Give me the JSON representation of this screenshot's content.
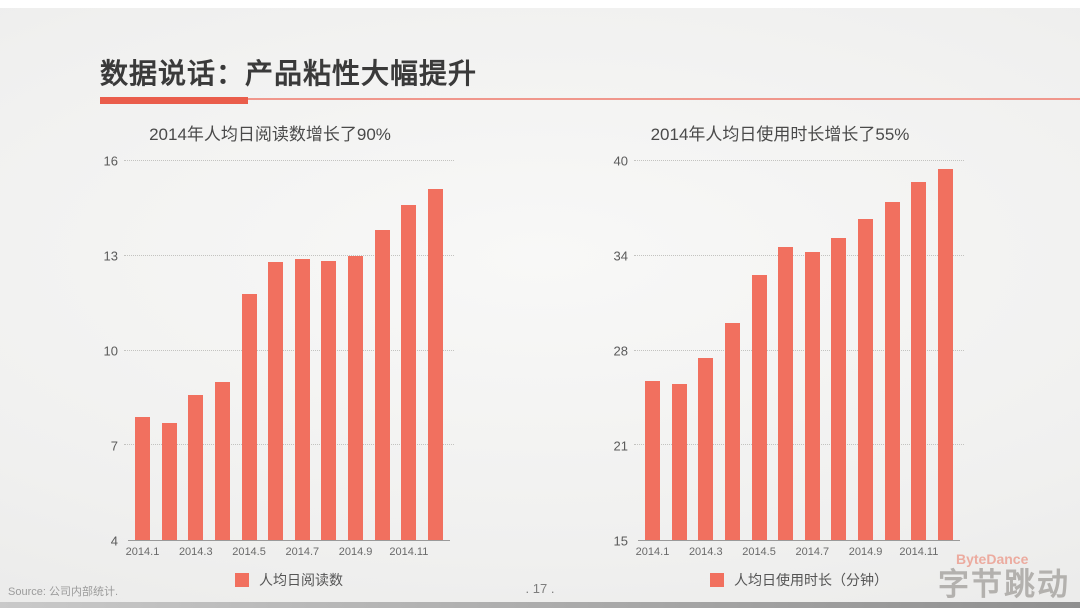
{
  "slide": {
    "title": "数据说话：产品粘性大幅提升",
    "source": "Source: 公司内部统计.",
    "page_number": ". 17 .",
    "watermark_en": "ByteDance",
    "watermark_zh": "字节跳动",
    "accent_color": "#f1705f",
    "title_rule_color": "#ea5d4b"
  },
  "chart_data": [
    {
      "type": "bar",
      "title": "2014年人均日阅读数增长了90%",
      "legend": "人均日阅读数",
      "categories": [
        "2014.1",
        "2014.2",
        "2014.3",
        "2014.4",
        "2014.5",
        "2014.6",
        "2014.7",
        "2014.8",
        "2014.9",
        "2014.10",
        "2014.11",
        "2014.12"
      ],
      "values": [
        7.9,
        7.7,
        8.6,
        9.0,
        11.8,
        12.8,
        12.9,
        12.85,
        13.0,
        13.8,
        14.6,
        15.1
      ],
      "x_tick_labels": [
        "2014.1",
        "2014.3",
        "2014.5",
        "2014.7",
        "2014.9",
        "2014.11"
      ],
      "y_tick_labels": [
        "4",
        "7",
        "10",
        "13",
        "16"
      ],
      "ylim": [
        4,
        16
      ],
      "xlabel": "",
      "ylabel": "",
      "grid": "horizontal-dotted",
      "legend_position": "bottom",
      "bar_color": "#f1705f"
    },
    {
      "type": "bar",
      "title": "2014年人均日使用时长增长了55%",
      "legend": "人均日使用时长（分钟）",
      "categories": [
        "2014.1",
        "2014.2",
        "2014.3",
        "2014.4",
        "2014.5",
        "2014.6",
        "2014.7",
        "2014.8",
        "2014.9",
        "2014.10",
        "2014.11",
        "2014.12"
      ],
      "values": [
        25.5,
        25.3,
        27.0,
        29.3,
        32.5,
        34.3,
        34.0,
        34.9,
        36.2,
        37.3,
        38.6,
        39.5
      ],
      "x_tick_labels": [
        "2014.1",
        "2014.3",
        "2014.5",
        "2014.7",
        "2014.9",
        "2014.11"
      ],
      "y_tick_labels": [
        "15",
        "21",
        "28",
        "34",
        "40"
      ],
      "ylim": [
        15,
        40
      ],
      "xlabel": "",
      "ylabel": "",
      "grid": "horizontal-dotted",
      "legend_position": "bottom",
      "bar_color": "#f1705f"
    }
  ]
}
